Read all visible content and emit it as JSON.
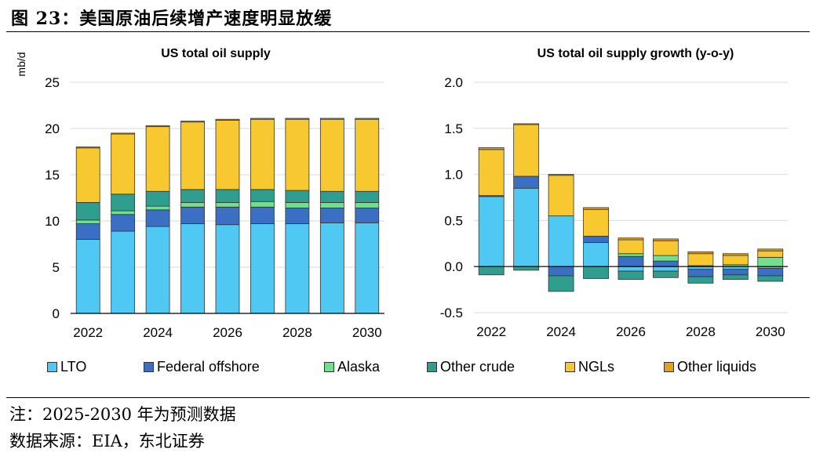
{
  "figure_title": "图 23：美国原油后续增产速度明显放缓",
  "note": "注：2025-2030 年为预测数据",
  "source": "数据来源：EIA，东北证券",
  "colors": {
    "LTO": "#4fc8f4",
    "Federal offshore": "#3a6fc4",
    "Alaska": "#72e08a",
    "Other crude": "#2f9e8f",
    "NGLs": "#f7c830",
    "Other liquids": "#e3a21a"
  },
  "legend": [
    "LTO",
    "Federal offshore",
    "Alaska",
    "Other crude",
    "NGLs",
    "Other liquids"
  ],
  "chart_data": [
    {
      "type": "bar",
      "stacked": true,
      "title": "US total oil supply",
      "ylabel": "mb/d",
      "xlabel": "",
      "ylim": [
        0,
        25
      ],
      "yticks": [
        0,
        5,
        10,
        15,
        20,
        25
      ],
      "grid": true,
      "categories": [
        "2022",
        "2023",
        "2024",
        "2025",
        "2026",
        "2027",
        "2028",
        "2029",
        "2030"
      ],
      "xtick_labels": [
        "2022",
        "",
        "2024",
        "",
        "2026",
        "",
        "2028",
        "",
        "2030"
      ],
      "series": [
        {
          "name": "LTO",
          "values": [
            8.0,
            8.9,
            9.4,
            9.7,
            9.6,
            9.7,
            9.7,
            9.8,
            9.8
          ]
        },
        {
          "name": "Federal offshore",
          "values": [
            1.7,
            1.8,
            1.8,
            1.8,
            1.9,
            1.8,
            1.7,
            1.6,
            1.6
          ]
        },
        {
          "name": "Alaska",
          "values": [
            0.4,
            0.4,
            0.4,
            0.5,
            0.5,
            0.6,
            0.6,
            0.6,
            0.6
          ]
        },
        {
          "name": "Other crude",
          "values": [
            1.9,
            1.8,
            1.6,
            1.4,
            1.4,
            1.3,
            1.3,
            1.2,
            1.2
          ]
        },
        {
          "name": "NGLs",
          "values": [
            5.9,
            6.5,
            7.0,
            7.3,
            7.5,
            7.6,
            7.7,
            7.8,
            7.8
          ]
        },
        {
          "name": "Other liquids",
          "values": [
            0.1,
            0.1,
            0.1,
            0.1,
            0.1,
            0.1,
            0.1,
            0.1,
            0.1
          ]
        }
      ]
    },
    {
      "type": "bar",
      "stacked": true,
      "title": "US total oil supply growth (y-o-y)",
      "ylabel": "",
      "xlabel": "",
      "ylim": [
        -0.5,
        2.0
      ],
      "yticks": [
        -0.5,
        0.0,
        0.5,
        1.0,
        1.5,
        2.0
      ],
      "grid": true,
      "categories": [
        "2022",
        "2023",
        "2024",
        "2025",
        "2026",
        "2027",
        "2028",
        "2029",
        "2030"
      ],
      "xtick_labels": [
        "2022",
        "",
        "2024",
        "",
        "2026",
        "",
        "2028",
        "",
        "2030"
      ],
      "series": [
        {
          "name": "LTO",
          "values": [
            0.76,
            0.85,
            0.55,
            0.26,
            -0.05,
            -0.05,
            -0.03,
            -0.03,
            -0.02
          ]
        },
        {
          "name": "Federal offshore",
          "values": [
            0.01,
            0.13,
            -0.1,
            0.07,
            0.11,
            0.06,
            -0.08,
            -0.06,
            -0.08
          ]
        },
        {
          "name": "Alaska",
          "values": [
            0.0,
            0.0,
            0.0,
            0.0,
            0.03,
            0.06,
            0.01,
            0.02,
            0.1
          ]
        },
        {
          "name": "Other crude",
          "values": [
            -0.09,
            -0.04,
            -0.17,
            -0.13,
            -0.09,
            -0.07,
            -0.07,
            -0.05,
            -0.06
          ]
        },
        {
          "name": "NGLs",
          "values": [
            0.5,
            0.56,
            0.44,
            0.29,
            0.15,
            0.16,
            0.13,
            0.1,
            0.07
          ]
        },
        {
          "name": "Other liquids",
          "values": [
            0.02,
            0.01,
            0.01,
            0.02,
            0.02,
            0.02,
            0.02,
            0.02,
            0.02
          ]
        }
      ]
    }
  ]
}
